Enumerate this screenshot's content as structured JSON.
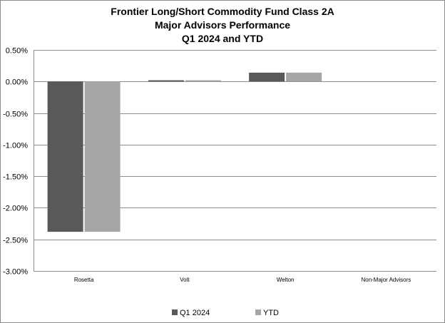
{
  "chart_data": {
    "type": "bar",
    "title_lines": [
      "Frontier Long/Short Commodity Fund Class 2A",
      "Major Advisors Performance",
      "Q1 2024 and YTD"
    ],
    "categories": [
      "Rosetta",
      "Volt",
      "Welton",
      "Non-Major Advisors"
    ],
    "series": [
      {
        "name": "Q1 2024",
        "color": "#595959",
        "values": [
          -2.38,
          0.02,
          0.14,
          0.0
        ]
      },
      {
        "name": "YTD",
        "color": "#a6a6a6",
        "values": [
          -2.38,
          0.02,
          0.14,
          0.0
        ]
      }
    ],
    "yticks": [
      "0.50%",
      "0.00%",
      "-0.50%",
      "-1.00%",
      "-1.50%",
      "-2.00%",
      "-2.50%",
      "-3.00%"
    ],
    "ytick_values": [
      0.5,
      0.0,
      -0.5,
      -1.0,
      -1.5,
      -2.0,
      -2.5,
      -3.0
    ],
    "ylim": [
      -3.0,
      0.5
    ],
    "grid": true,
    "legend_position": "bottom"
  }
}
